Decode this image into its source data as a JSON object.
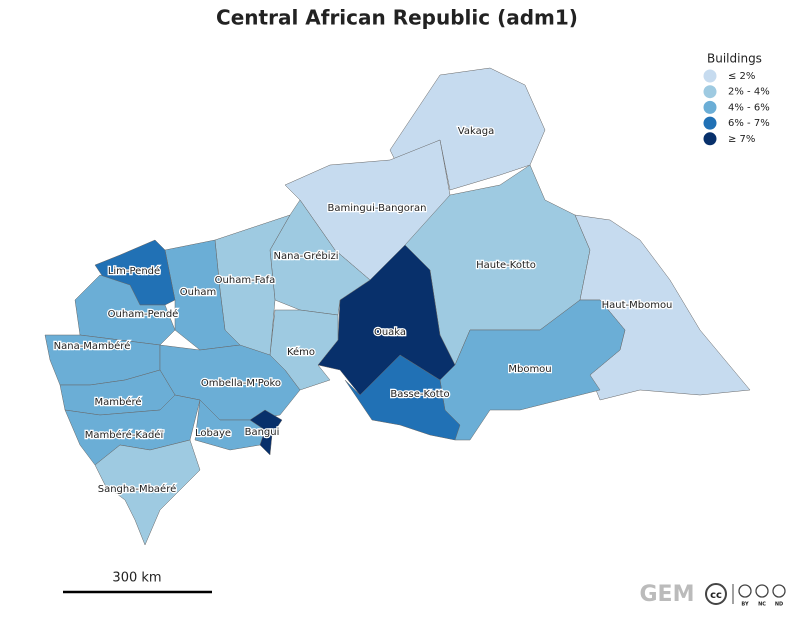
{
  "title": "Central African Republic (adm1)",
  "legend": {
    "title": "Buildings",
    "items": [
      {
        "label": "≤ 2%",
        "color": "#c6dbef"
      },
      {
        "label": "2% - 4%",
        "color": "#9ecae1"
      },
      {
        "label": "4% - 6%",
        "color": "#6baed6"
      },
      {
        "label": "6% - 7%",
        "color": "#2171b5"
      },
      {
        "label": "≥ 7%",
        "color": "#08306b"
      }
    ]
  },
  "regions": [
    {
      "name": "Vakaga",
      "color": "#c6dbef"
    },
    {
      "name": "Bamingui-Bangoran",
      "color": "#c6dbef"
    },
    {
      "name": "Haute-Kotto",
      "color": "#9ecae1"
    },
    {
      "name": "Haut-Mbomou",
      "color": "#c6dbef"
    },
    {
      "name": "Mbomou",
      "color": "#6baed6"
    },
    {
      "name": "Ouaka",
      "color": "#08306b"
    },
    {
      "name": "Basse-Kotto",
      "color": "#2171b5"
    },
    {
      "name": "Nana-Grébizi",
      "color": "#9ecae1"
    },
    {
      "name": "Kémo",
      "color": "#9ecae1"
    },
    {
      "name": "Ouham-Fafa",
      "color": "#9ecae1"
    },
    {
      "name": "Ouham",
      "color": "#6baed6"
    },
    {
      "name": "Lim-Pendé",
      "color": "#2171b5"
    },
    {
      "name": "Ouham-Pendé",
      "color": "#6baed6"
    },
    {
      "name": "Nana-Mambéré",
      "color": "#6baed6"
    },
    {
      "name": "Ombella-M'Poko",
      "color": "#6baed6"
    },
    {
      "name": "Mambéré",
      "color": "#6baed6"
    },
    {
      "name": "Mambéré-Kadéï",
      "color": "#6baed6"
    },
    {
      "name": "Lobaye",
      "color": "#6baed6"
    },
    {
      "name": "Bangui",
      "color": "#08306b"
    },
    {
      "name": "Sangha-Mbaéré",
      "color": "#9ecae1"
    }
  ],
  "scale_bar": "300 km",
  "logo": {
    "name": "GEM",
    "license": [
      "BY",
      "NC",
      "ND"
    ]
  }
}
